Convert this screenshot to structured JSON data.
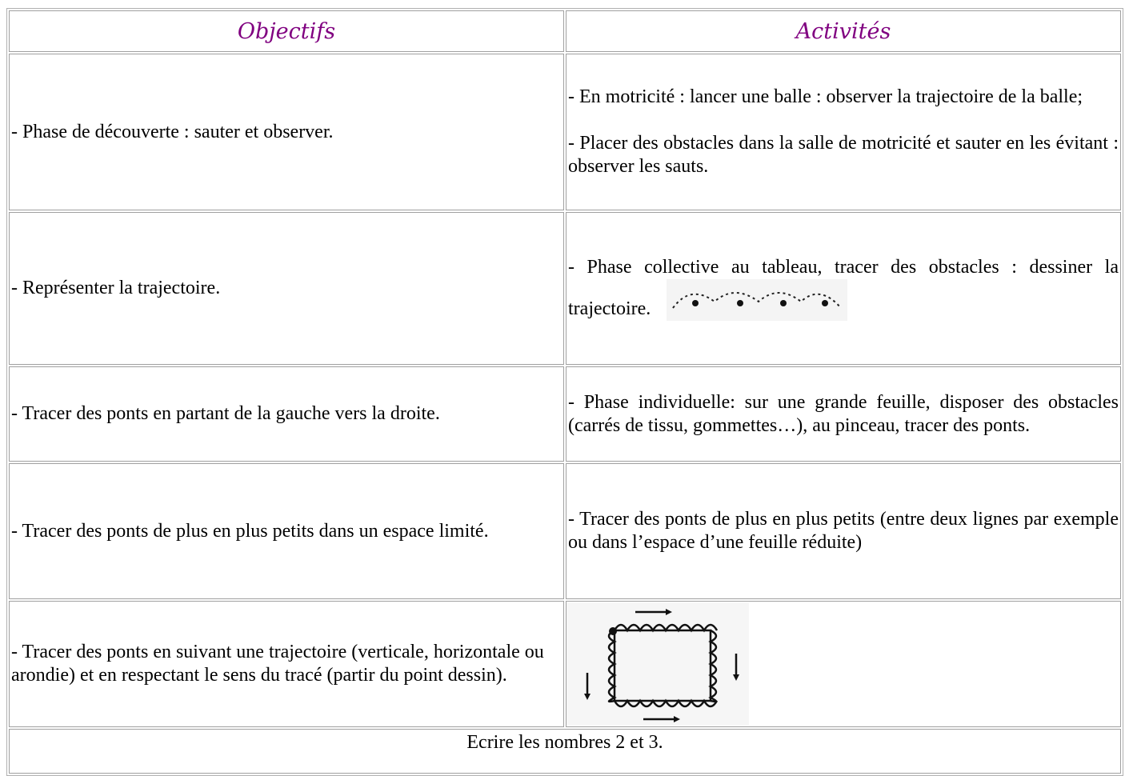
{
  "table": {
    "header": [
      "Objectifs",
      "Activités"
    ],
    "rows": [
      {
        "objective": "- Phase de découverte : sauter et observer.",
        "activities": [
          "- En motricité : lancer une balle : observer la trajectoire de la balle;",
          "- Placer des obstacles dans la salle de motricité et sauter en les évitant : observer les sauts."
        ]
      },
      {
        "objective": "- Représenter la trajectoire.",
        "activities": [
          "- Phase collective au tableau, tracer  des obstacles : dessiner la trajectoire."
        ]
      },
      {
        "objective": "- Tracer des ponts en partant de la gauche vers la droite.",
        "activities": [
          "- Phase individuelle: sur une grande feuille, disposer des obstacles (carrés de tissu, gommettes…), au pinceau, tracer des ponts."
        ]
      },
      {
        "objective": "- Tracer des ponts de plus en plus petits dans un espace limité.",
        "activities": [
          "- Tracer des ponts de plus en plus petits (entre deux lignes par exemple ou dans l’espace d’une feuille réduite)"
        ]
      },
      {
        "objective": "- Tracer des ponts en suivant une trajectoire (verticale, horizontale ou arondie) et en respectant le sens du tracé (partir du point dessin)."
      }
    ],
    "footer": "Ecrire les nombres 2 et 3."
  }
}
